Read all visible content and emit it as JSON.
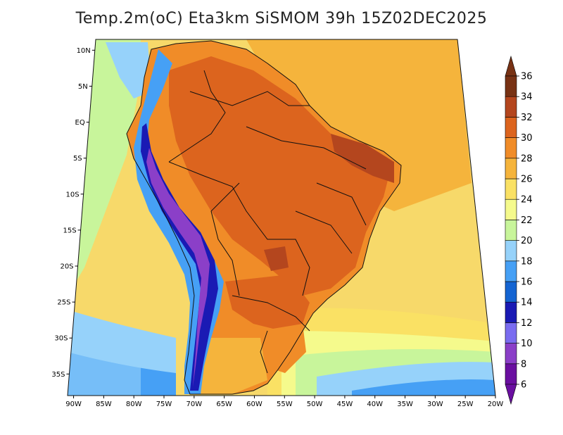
{
  "title": "Temp.2m(oC) Eta3km SiSMOM 39h 15Z02DEC2025",
  "lat_ticks": [
    {
      "lat": 10,
      "label": "10N"
    },
    {
      "lat": 5,
      "label": "5N"
    },
    {
      "lat": 0,
      "label": "EQ"
    },
    {
      "lat": -5,
      "label": "5S"
    },
    {
      "lat": -10,
      "label": "10S"
    },
    {
      "lat": -15,
      "label": "15S"
    },
    {
      "lat": -20,
      "label": "20S"
    },
    {
      "lat": -25,
      "label": "25S"
    },
    {
      "lat": -30,
      "label": "30S"
    },
    {
      "lat": -35,
      "label": "35S"
    }
  ],
  "lon_ticks": [
    {
      "lon": -90,
      "label": "90W"
    },
    {
      "lon": -85,
      "label": "85W"
    },
    {
      "lon": -80,
      "label": "80W"
    },
    {
      "lon": -75,
      "label": "75W"
    },
    {
      "lon": -70,
      "label": "70W"
    },
    {
      "lon": -65,
      "label": "65W"
    },
    {
      "lon": -60,
      "label": "60W"
    },
    {
      "lon": -55,
      "label": "55W"
    },
    {
      "lon": -50,
      "label": "50W"
    },
    {
      "lon": -45,
      "label": "45W"
    },
    {
      "lon": -40,
      "label": "40W"
    },
    {
      "lon": -35,
      "label": "35W"
    },
    {
      "lon": -30,
      "label": "30W"
    },
    {
      "lon": -25,
      "label": "25W"
    },
    {
      "lon": -20,
      "label": "20W"
    }
  ],
  "colorbar": {
    "levels": [
      "6",
      "8",
      "10",
      "12",
      "14",
      "16",
      "18",
      "20",
      "22",
      "24",
      "26",
      "28",
      "30",
      "32",
      "34",
      "36"
    ],
    "colors": [
      "#6a0fa0",
      "#8b3fc8",
      "#7a6cf0",
      "#1a1ab4",
      "#1464d2",
      "#46a0f5",
      "#96d2fa",
      "#c8f59b",
      "#f5fa8c",
      "#fae164",
      "#f5b43c",
      "#f08c28",
      "#dc641e",
      "#b4461e",
      "#783214"
    ]
  },
  "palette": {
    "ocean_far": "#f7d96a",
    "ocean_south": "#c8f59b",
    "ocean_cold": "#46a0f5",
    "land_warm": "#f08c28",
    "land_hot": "#dc641e",
    "land_very_hot": "#b4461e",
    "andes_cold": "#1a1ab4",
    "andes_coldest": "#8b3fc8"
  }
}
